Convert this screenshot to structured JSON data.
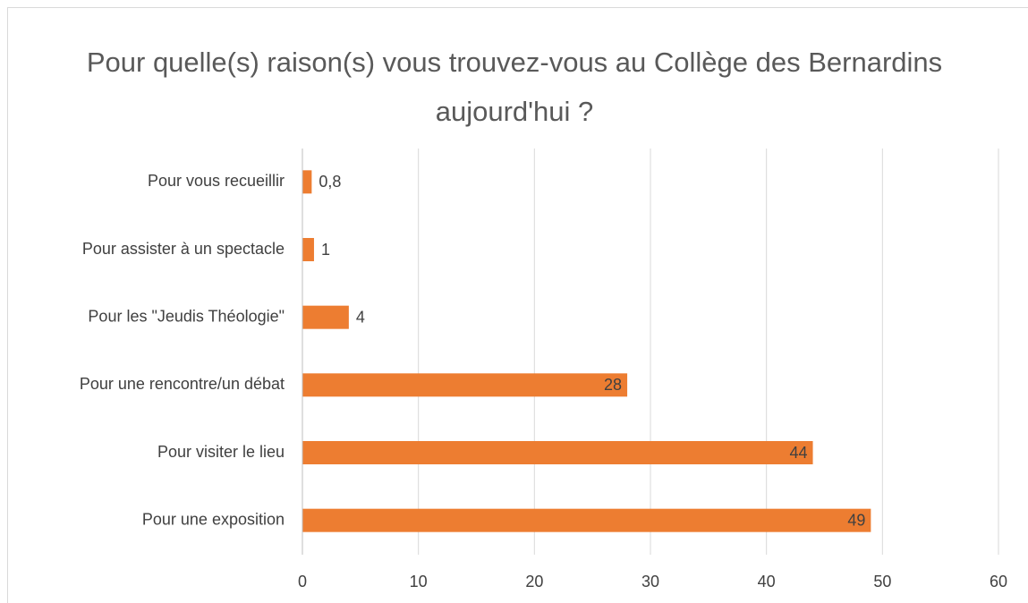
{
  "chart_data": {
    "type": "barh",
    "title": "Pour quelle(s) raison(s) vous trouvez-vous au Collège des Bernardins aujourd'hui ?",
    "categories": [
      "Pour vous recueillir",
      "Pour assister à un spectacle",
      "Pour les \"Jeudis Théologie\"",
      "Pour une rencontre/un débat",
      "Pour visiter le lieu",
      "Pour une exposition"
    ],
    "values": [
      0.8,
      1,
      4,
      28,
      44,
      49
    ],
    "value_labels": [
      "0,8",
      "1",
      "4",
      "28",
      "44",
      "49"
    ],
    "color": "#ed7d31",
    "xlim": [
      0,
      60
    ],
    "xticks": [
      0,
      10,
      20,
      30,
      40,
      50,
      60
    ],
    "grid": true
  }
}
